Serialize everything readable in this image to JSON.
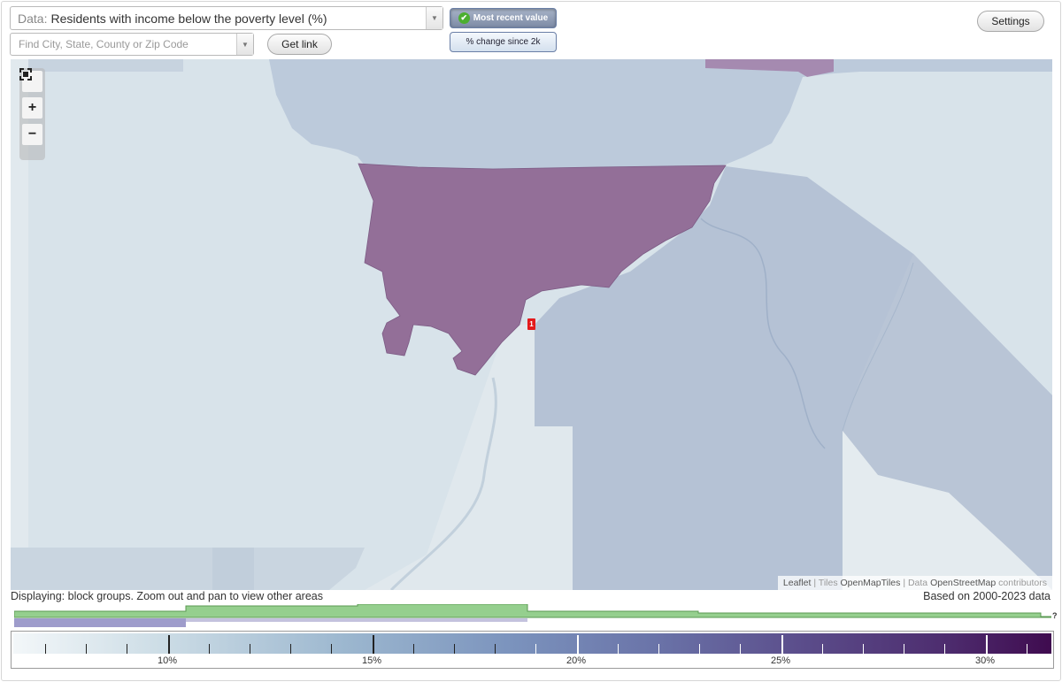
{
  "controls": {
    "data_prefix": "Data:",
    "data_value": "Residents with income below the poverty level (%)",
    "search_placeholder": "Find City, State, County or Zip Code",
    "get_link_label": "Get link",
    "settings_label": "Settings",
    "toggle_active_label": "Most recent value",
    "toggle_inactive_label": "% change since 2k"
  },
  "map": {
    "zoom_in": "+",
    "zoom_out": "−",
    "marker_label": "1",
    "attribution": {
      "leaflet": "Leaflet",
      "sep1": " | Tiles ",
      "tiles": "OpenMapTiles",
      "sep2": " | Data ",
      "data": "OpenStreetMap",
      "suffix": " contributors"
    },
    "colors": {
      "low": "#dde6ec",
      "mid": "#b3c1d3",
      "high": "#936f98",
      "water": "#eef2f4"
    }
  },
  "footer": {
    "displaying": "Displaying: block groups. Zoom out and pan to view other areas",
    "based_on": "Based on 2000-2023 data",
    "help": "?"
  },
  "scale": {
    "labels": [
      "10%",
      "15%",
      "20%",
      "25%",
      "30%"
    ],
    "colors": {
      "start": "#f3f7f9",
      "end": "#3f0b4f"
    }
  }
}
